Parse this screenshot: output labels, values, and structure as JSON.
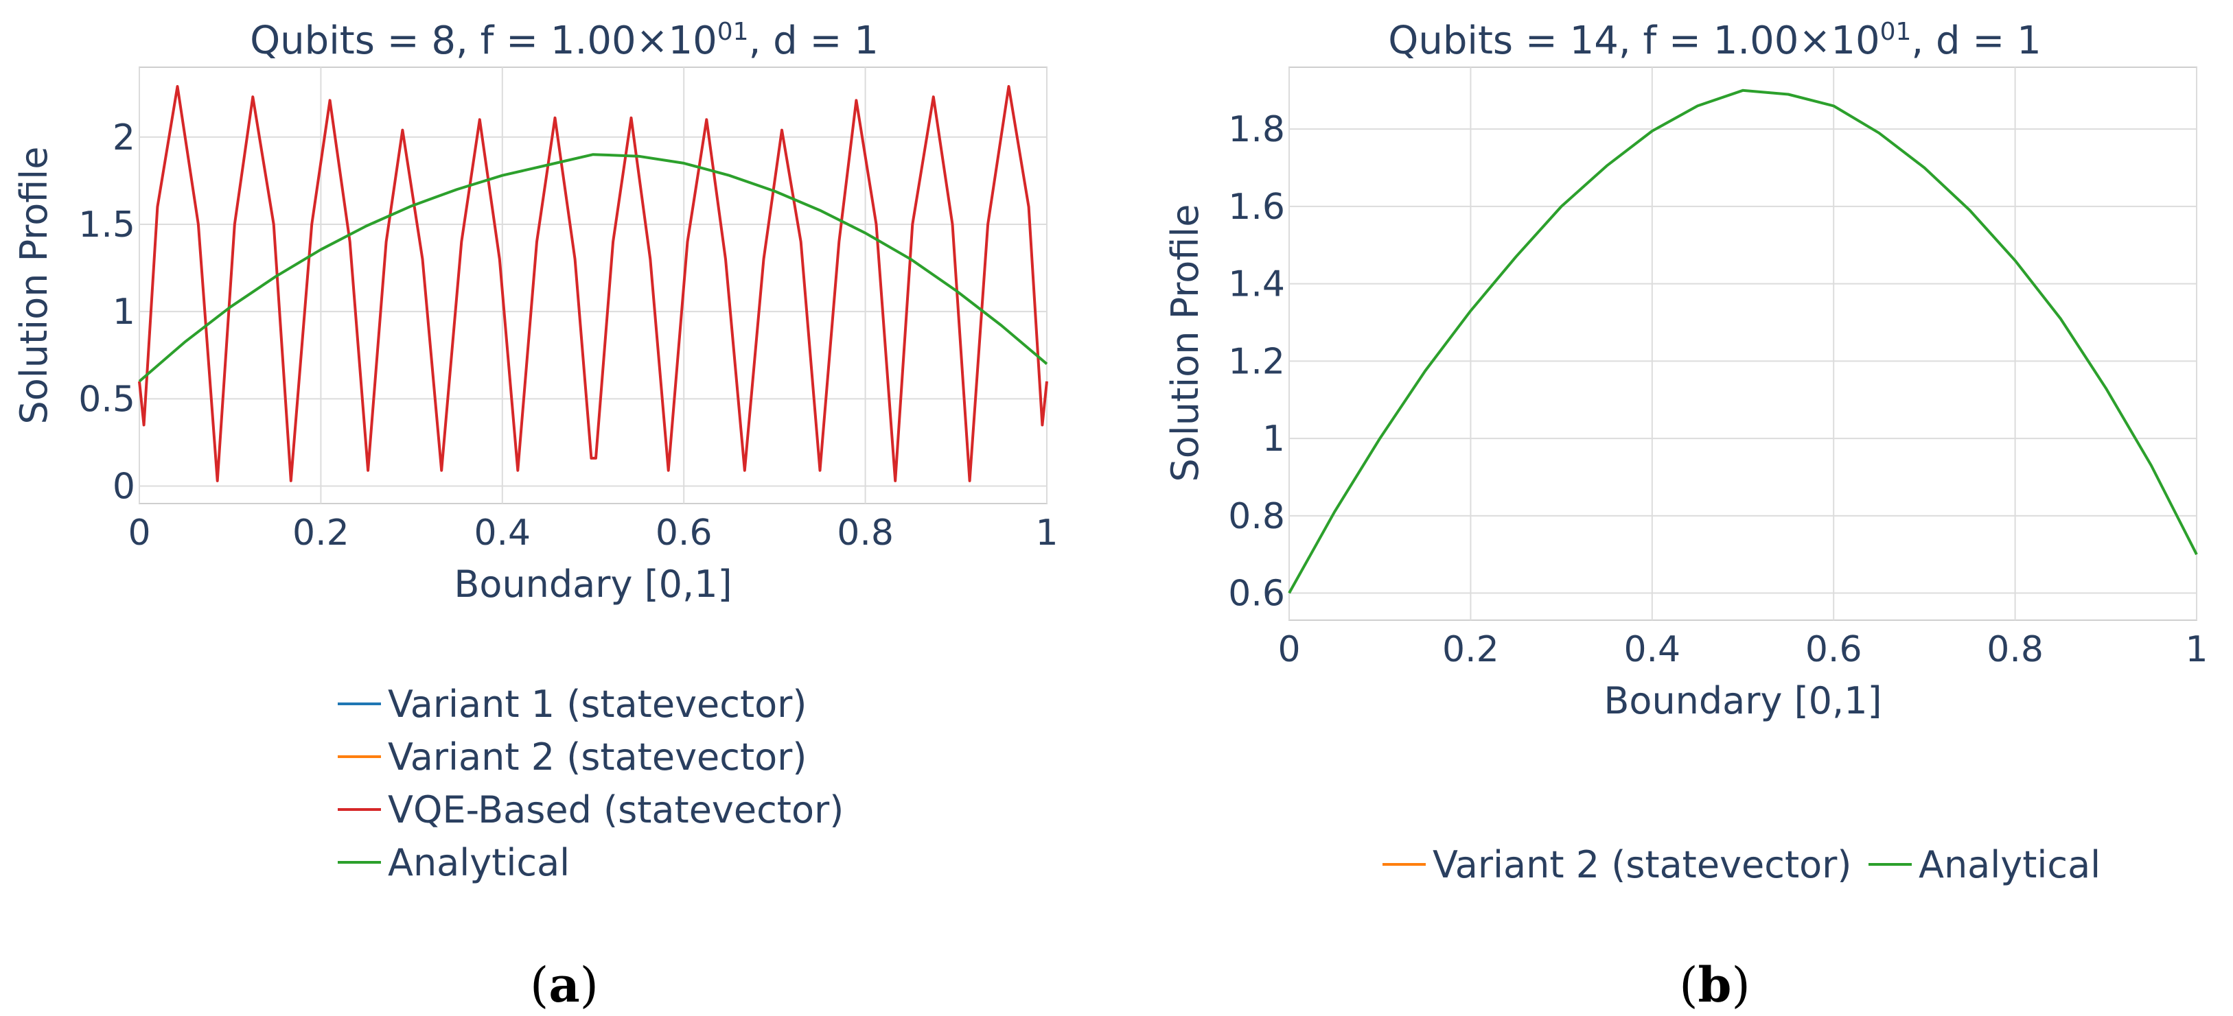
{
  "colors": {
    "variant1": "#1f77b4",
    "variant2": "#ff7f0e",
    "vqe": "#d62728",
    "analytical": "#2ca02c",
    "text": "#2a3f5f"
  },
  "panels": [
    {
      "title_main": "Qubits = 8, f = 1.00×10",
      "title_sup": "01",
      "title_tail": ", d = 1",
      "xlabel": "Boundary [0,1]",
      "ylabel": "Solution Profile",
      "caption_open": "(",
      "caption_letter": "a",
      "caption_close": ")",
      "legend": [
        {
          "label": "Variant 1 (statevector)",
          "series": "variant1"
        },
        {
          "label": "Variant 2 (statevector)",
          "series": "variant2"
        },
        {
          "label": "VQE-Based (statevector)",
          "series": "vqe"
        },
        {
          "label": "Analytical",
          "series": "analytical"
        }
      ]
    },
    {
      "title_main": "Qubits = 14, f = 1.00×10",
      "title_sup": "01",
      "title_tail": ", d = 1",
      "xlabel": "Boundary [0,1]",
      "ylabel": "Solution Profile",
      "caption_open": "(",
      "caption_letter": "b",
      "caption_close": ")",
      "legend": [
        {
          "label": "Variant 2 (statevector)",
          "series": "variant2"
        },
        {
          "label": "Analytical",
          "series": "analytical"
        }
      ]
    }
  ],
  "chart_data": [
    {
      "type": "line",
      "title": "Qubits = 8, f = 1.00×10^01, d = 1",
      "xlabel": "Boundary [0,1]",
      "ylabel": "Solution Profile",
      "xlim": [
        0,
        1
      ],
      "ylim": [
        -0.1,
        2.4
      ],
      "x_ticks": [
        0,
        0.2,
        0.4,
        0.6,
        0.8,
        1
      ],
      "x_tick_labels": [
        "0",
        "0.2",
        "0.4",
        "0.6",
        "0.8",
        "1"
      ],
      "y_ticks": [
        0,
        0.5,
        1,
        1.5,
        2
      ],
      "y_tick_labels": [
        "0",
        "0.5",
        "1",
        "1.5",
        "2"
      ],
      "grid": true,
      "legend_position": "below",
      "series": [
        {
          "name": "Variant 1 (statevector)",
          "color_key": "variant1",
          "points": []
        },
        {
          "name": "Variant 2 (statevector)",
          "color_key": "variant2",
          "points": []
        },
        {
          "name": "VQE-Based (statevector)",
          "color_key": "vqe",
          "points": [
            [
              0,
              0.6
            ],
            [
              0.005,
              0.35
            ],
            [
              0.02,
              1.6
            ],
            [
              0.042,
              2.29
            ],
            [
              0.065,
              1.5
            ],
            [
              0.086,
              0.03
            ],
            [
              0.105,
              1.5
            ],
            [
              0.125,
              2.23
            ],
            [
              0.148,
              1.5
            ],
            [
              0.167,
              0.03
            ],
            [
              0.19,
              1.5
            ],
            [
              0.21,
              2.21
            ],
            [
              0.232,
              1.4
            ],
            [
              0.252,
              0.09
            ],
            [
              0.272,
              1.4
            ],
            [
              0.29,
              2.04
            ],
            [
              0.312,
              1.3
            ],
            [
              0.333,
              0.09
            ],
            [
              0.355,
              1.4
            ],
            [
              0.375,
              2.1
            ],
            [
              0.397,
              1.3
            ],
            [
              0.417,
              0.09
            ],
            [
              0.438,
              1.4
            ],
            [
              0.458,
              2.11
            ],
            [
              0.48,
              1.3
            ],
            [
              0.498,
              0.16
            ],
            [
              0.503,
              0.16
            ],
            [
              0.522,
              1.4
            ],
            [
              0.542,
              2.11
            ],
            [
              0.563,
              1.3
            ],
            [
              0.583,
              0.09
            ],
            [
              0.604,
              1.4
            ],
            [
              0.625,
              2.1
            ],
            [
              0.646,
              1.3
            ],
            [
              0.667,
              0.09
            ],
            [
              0.688,
              1.3
            ],
            [
              0.708,
              2.04
            ],
            [
              0.729,
              1.4
            ],
            [
              0.75,
              0.09
            ],
            [
              0.771,
              1.4
            ],
            [
              0.79,
              2.21
            ],
            [
              0.812,
              1.5
            ],
            [
              0.833,
              0.03
            ],
            [
              0.852,
              1.5
            ],
            [
              0.875,
              2.23
            ],
            [
              0.896,
              1.5
            ],
            [
              0.915,
              0.03
            ],
            [
              0.935,
              1.5
            ],
            [
              0.958,
              2.29
            ],
            [
              0.98,
              1.6
            ],
            [
              0.995,
              0.35
            ],
            [
              1,
              0.6
            ]
          ]
        },
        {
          "name": "Analytical",
          "color_key": "analytical",
          "points": [
            [
              0,
              0.6
            ],
            [
              0.05,
              0.825
            ],
            [
              0.1,
              1.025
            ],
            [
              0.15,
              1.2
            ],
            [
              0.2,
              1.355
            ],
            [
              0.25,
              1.49
            ],
            [
              0.3,
              1.605
            ],
            [
              0.35,
              1.7
            ],
            [
              0.4,
              1.78
            ],
            [
              0.45,
              1.84
            ],
            [
              0.5,
              1.9
            ],
            [
              0.55,
              1.89
            ],
            [
              0.6,
              1.85
            ],
            [
              0.65,
              1.78
            ],
            [
              0.7,
              1.69
            ],
            [
              0.75,
              1.58
            ],
            [
              0.8,
              1.45
            ],
            [
              0.85,
              1.3
            ],
            [
              0.9,
              1.12
            ],
            [
              0.95,
              0.92
            ],
            [
              1,
              0.7
            ]
          ]
        }
      ]
    },
    {
      "type": "line",
      "title": "Qubits = 14, f = 1.00×10^01, d = 1",
      "xlabel": "Boundary [0,1]",
      "ylabel": "Solution Profile",
      "xlim": [
        0,
        1
      ],
      "ylim": [
        0.53,
        1.96
      ],
      "x_ticks": [
        0,
        0.2,
        0.4,
        0.6,
        0.8,
        1
      ],
      "x_tick_labels": [
        "0",
        "0.2",
        "0.4",
        "0.6",
        "0.8",
        "1"
      ],
      "y_ticks": [
        0.6,
        0.8,
        1,
        1.2,
        1.4,
        1.6,
        1.8
      ],
      "y_tick_labels": [
        "0.6",
        "0.8",
        "1",
        "1.2",
        "1.4",
        "1.6",
        "1.8"
      ],
      "grid": true,
      "legend_position": "below",
      "series": [
        {
          "name": "Variant 2 (statevector)",
          "color_key": "variant2",
          "points": []
        },
        {
          "name": "Analytical",
          "color_key": "analytical",
          "points": [
            [
              0,
              0.6
            ],
            [
              0.05,
              0.81
            ],
            [
              0.1,
              1.0
            ],
            [
              0.15,
              1.175
            ],
            [
              0.2,
              1.33
            ],
            [
              0.25,
              1.47
            ],
            [
              0.3,
              1.6
            ],
            [
              0.35,
              1.705
            ],
            [
              0.4,
              1.795
            ],
            [
              0.45,
              1.86
            ],
            [
              0.5,
              1.9
            ],
            [
              0.55,
              1.89
            ],
            [
              0.6,
              1.86
            ],
            [
              0.65,
              1.79
            ],
            [
              0.7,
              1.7
            ],
            [
              0.75,
              1.59
            ],
            [
              0.8,
              1.46
            ],
            [
              0.85,
              1.31
            ],
            [
              0.9,
              1.13
            ],
            [
              0.95,
              0.93
            ],
            [
              1,
              0.7
            ]
          ]
        }
      ]
    }
  ]
}
